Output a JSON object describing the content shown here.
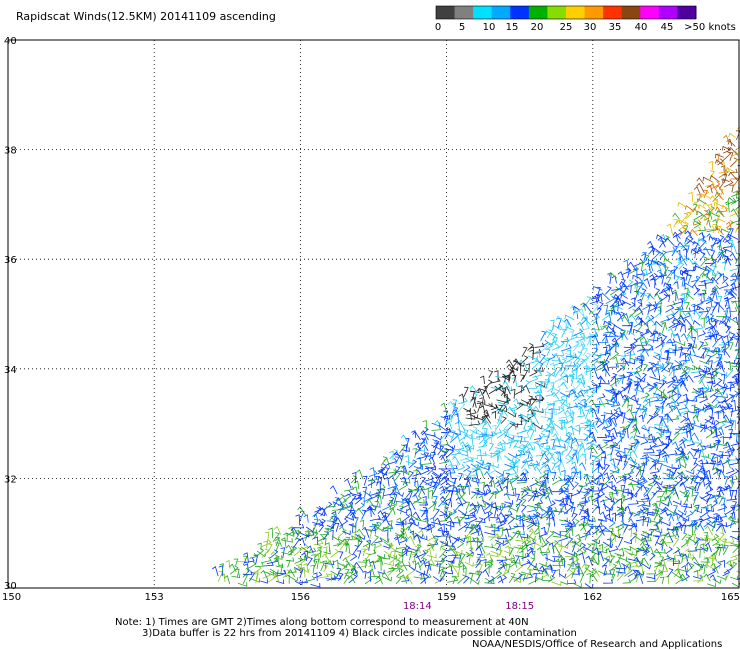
{
  "title": "Rapidscat Winds(12.5KM) 20141109 ascending",
  "chart_data": {
    "type": "wind-barbs",
    "xlim": [
      150,
      165
    ],
    "ylim": [
      30,
      40
    ],
    "x_ticks": [
      "150",
      "153",
      "156",
      "159",
      "162",
      "165"
    ],
    "x_tick_values": [
      150,
      153,
      156,
      159,
      162,
      165
    ],
    "y_ticks": [
      "30",
      "32",
      "34",
      "36",
      "38",
      "40"
    ],
    "y_tick_values": [
      30,
      32,
      34,
      36,
      38,
      40
    ],
    "grid": "dotted",
    "time_labels": [
      {
        "text": "18:14",
        "lon": 158.4
      },
      {
        "text": "18:15",
        "lon": 160.5
      }
    ],
    "swath_edge": [
      [
        154.3,
        30.2
      ],
      [
        157.3,
        32.0
      ],
      [
        163.5,
        36.3
      ],
      [
        165.0,
        38.4
      ]
    ],
    "legend": {
      "ticks": [
        "0",
        "5",
        "10",
        "15",
        "20",
        "25",
        "30",
        "35",
        "40",
        "45",
        ">50 knots"
      ],
      "colors": [
        "#404040",
        "#808080",
        "#00e0ff",
        "#00aaff",
        "#0033ff",
        "#00b000",
        "#88dd00",
        "#ffd000",
        "#ff9900",
        "#ff3300",
        "#8b4513",
        "#ff00ff",
        "#b000ff",
        "#5000a0"
      ]
    }
  },
  "notes": {
    "line1": "Note: 1) Times are GMT 2)Times along bottom correspond to measurement at 40N",
    "line2": "3)Data buffer is 22 hrs from 20141109 4) Black circles indicate possible contamination",
    "credit": "NOAA/NESDIS/Office of Research and Applications"
  }
}
